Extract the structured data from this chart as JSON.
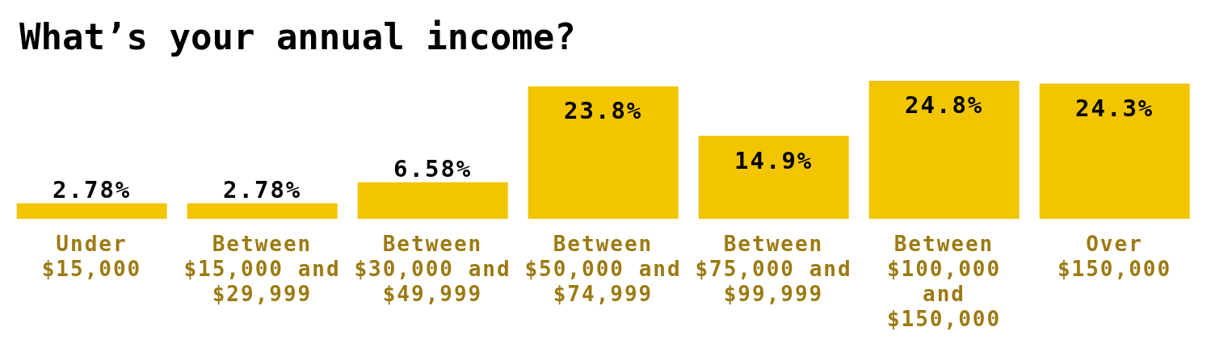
{
  "chart_data": {
    "type": "bar",
    "title": "What’s your annual income?",
    "categories": [
      "Under $15,000",
      "Between $15,000 and $29,999",
      "Between $30,000 and $49,999",
      "Between $50,000 and $74,999",
      "Between $75,000 and $99,999",
      "Between $100,000 and $150,000",
      "Over $150,000"
    ],
    "values": [
      2.78,
      2.78,
      6.58,
      23.8,
      14.9,
      24.8,
      24.3
    ],
    "value_labels": [
      "2.78%",
      "2.78%",
      "6.58%",
      "23.8%",
      "14.9%",
      "24.8%",
      "24.3%"
    ],
    "color": "#f2c500",
    "tick_labels": "x"
  }
}
